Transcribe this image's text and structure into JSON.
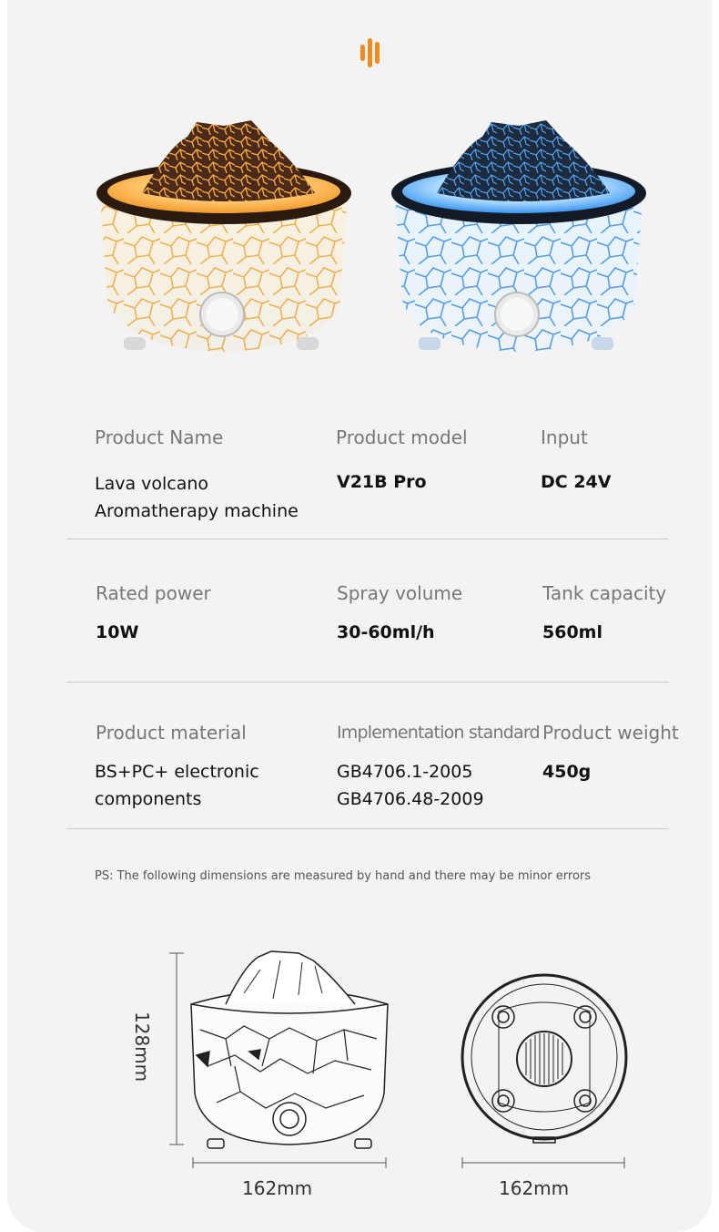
{
  "brand": {
    "logo_icon": "orange-bars-icon",
    "accent": "#f28a1c"
  },
  "products": [
    {
      "name": "amber-volcano",
      "glow": "#f3a23a"
    },
    {
      "name": "blue-volcano",
      "glow": "#2f8ff2"
    }
  ],
  "specs": {
    "row1": {
      "product_name_label": "Product Name",
      "product_name_value": "Lava volcano Aromatherapy machine",
      "product_model_label": "Product model",
      "product_model_value": "V21B Pro",
      "input_label": "Input",
      "input_value": "DC 24V"
    },
    "row2": {
      "rated_power_label": "Rated power",
      "rated_power_value": "10W",
      "spray_volume_label": "Spray volume",
      "spray_volume_value": "30-60ml/h",
      "tank_capacity_label": "Tank capacity",
      "tank_capacity_value": "560ml"
    },
    "row3": {
      "material_label": "Product material",
      "material_value": "BS+PC+ electronic components",
      "standard_label": "Implementation standard",
      "standard_value_1": "GB4706.1-2005",
      "standard_value_2": "GB4706.48-2009",
      "weight_label": "Product weight",
      "weight_value": "450g"
    }
  },
  "note": "PS: The following dimensions are measured by hand and there may be minor errors",
  "dimensions": {
    "height": "128mm",
    "width_side": "162mm",
    "width_bottom": "162mm"
  }
}
